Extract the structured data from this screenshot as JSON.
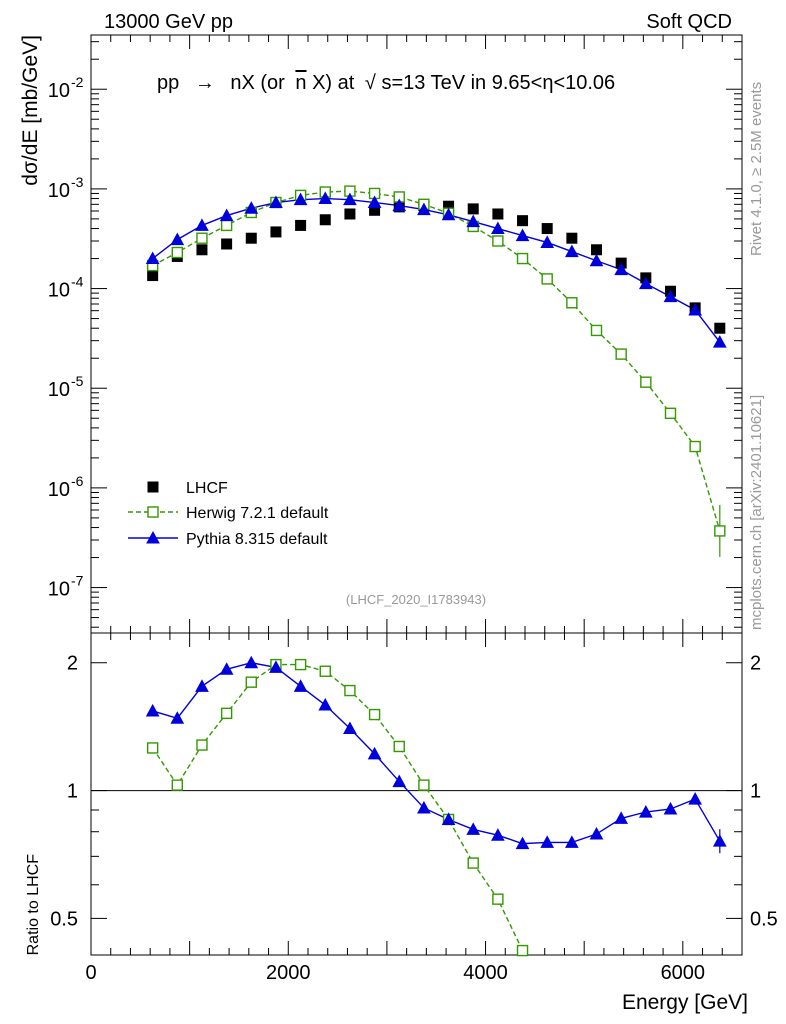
{
  "header": {
    "energy_label": "13000 GeV pp",
    "process_label": "Soft QCD"
  },
  "side": {
    "rivet_label": "Rivet 4.1.0, ≥ 2.5M events",
    "source_label": "mcplots.cern.ch [arXiv:2401.10621]"
  },
  "colors": {
    "lhcf": "#000000",
    "herwig": "#339900",
    "pythia": "#0000dd",
    "analysis_label": "#999999"
  },
  "chart_data": [
    {
      "type": "scatter",
      "panel": "main",
      "title": "pp → nX (or n̄X) at √s=13 TeV in 9.65<η<10.06",
      "title_parts": {
        "lead": "pp",
        "arrow": "→",
        "mid": "nX (or",
        "nbar": "n",
        "after_nbar": "X) at",
        "sqrt": "√",
        "tail": "s=13 TeV in 9.65<η<10.06"
      },
      "analysis_id": "(LHCF_2020_I1783943)",
      "xlabel": "Energy [GeV]",
      "ylabel": "dσ/dE [mb/GeV]",
      "xlim": [
        0,
        6600
      ],
      "ylim": [
        3.5e-08,
        0.035
      ],
      "yscale": "log",
      "ytick_labels": [
        {
          "value": 1e-07,
          "mantissa": "10",
          "exponent": "-7"
        },
        {
          "value": 1e-06,
          "mantissa": "10",
          "exponent": "-6"
        },
        {
          "value": 1e-05,
          "mantissa": "10",
          "exponent": "-5"
        },
        {
          "value": 0.0001,
          "mantissa": "10",
          "exponent": "-4"
        },
        {
          "value": 0.001,
          "mantissa": "10",
          "exponent": "-3"
        },
        {
          "value": 0.01,
          "mantissa": "10",
          "exponent": "-2"
        }
      ],
      "legend_position": "bottom-left",
      "series": [
        {
          "name": "LHCF",
          "style": "markers",
          "x": [
            625,
            875,
            1125,
            1375,
            1625,
            1875,
            2125,
            2375,
            2625,
            2875,
            3125,
            3375,
            3625,
            3875,
            4125,
            4375,
            4625,
            4875,
            5125,
            5375,
            5625,
            5875,
            6125,
            6375
          ],
          "y": [
            0.000135,
            0.00021,
            0.000245,
            0.00028,
            0.00032,
            0.00037,
            0.00043,
            0.00049,
            0.00056,
            0.00061,
            0.00066,
            0.00068,
            0.00067,
            0.00063,
            0.00056,
            0.00048,
            0.0004,
            0.00032,
            0.000245,
            0.00018,
            0.000128,
            9.4e-05,
            6.4e-05,
            4e-05
          ]
        },
        {
          "name": "Herwig 7.2.1 default",
          "style": "dashed line, open squares",
          "x": [
            625,
            875,
            1125,
            1375,
            1625,
            1875,
            2125,
            2375,
            2625,
            2875,
            3125,
            3375,
            3625,
            3875,
            4125,
            4375,
            4625,
            4875,
            5125,
            5375,
            5625,
            5875,
            6125,
            6375
          ],
          "y": [
            0.00017,
            0.00023,
            0.00032,
            0.00043,
            0.00058,
            0.00073,
            0.00086,
            0.00093,
            0.00095,
            0.0009,
            0.00083,
            0.0007,
            0.00057,
            0.00042,
            0.0003,
            0.0002,
            0.000125,
            7.2e-05,
            3.8e-05,
            2.2e-05,
            1.15e-05,
            5.6e-06,
            2.6e-06,
            3.7e-07
          ]
        },
        {
          "name": "Pythia 8.315 default",
          "style": "solid line, filled triangles",
          "x": [
            625,
            875,
            1125,
            1375,
            1625,
            1875,
            2125,
            2375,
            2625,
            2875,
            3125,
            3375,
            3625,
            3875,
            4125,
            4375,
            4625,
            4875,
            5125,
            5375,
            5625,
            5875,
            6125,
            6375
          ],
          "y": [
            0.0002,
            0.00031,
            0.00043,
            0.00054,
            0.00064,
            0.00073,
            0.00078,
            0.0008,
            0.00078,
            0.00073,
            0.00068,
            0.00062,
            0.00055,
            0.00047,
            0.0004,
            0.00034,
            0.00029,
            0.000235,
            0.00019,
            0.000155,
            0.000112,
            8.3e-05,
            6.1e-05,
            2.9e-05
          ]
        }
      ]
    },
    {
      "type": "line",
      "panel": "ratio",
      "xlabel": "Energy [GeV]",
      "ylabel": "Ratio to LHCF",
      "xlim": [
        0,
        6600
      ],
      "ylim": [
        0.41,
        2.35
      ],
      "yscale": "log",
      "xtick_labels": [
        {
          "value": 0,
          "label": "0"
        },
        {
          "value": 2000,
          "label": "2000"
        },
        {
          "value": 4000,
          "label": "4000"
        },
        {
          "value": 6000,
          "label": "6000"
        }
      ],
      "ytick_labels": [
        {
          "value": 0.5,
          "label": "0.5"
        },
        {
          "value": 1,
          "label": "1"
        },
        {
          "value": 2,
          "label": "2"
        }
      ],
      "reference_line": 1,
      "series": [
        {
          "name": "Herwig 7.2.1 default",
          "x": [
            625,
            875,
            1125,
            1375,
            1625,
            1875,
            2125,
            2375,
            2625,
            2875,
            3125,
            3375,
            3625,
            3875,
            4125,
            4375
          ],
          "y": [
            1.26,
            1.03,
            1.28,
            1.52,
            1.8,
            1.98,
            1.98,
            1.91,
            1.72,
            1.51,
            1.27,
            1.03,
            0.855,
            0.675,
            0.555,
            0.42
          ]
        },
        {
          "name": "Pythia 8.315 default",
          "x": [
            625,
            875,
            1125,
            1375,
            1625,
            1875,
            2125,
            2375,
            2625,
            2875,
            3125,
            3375,
            3625,
            3875,
            4125,
            4375,
            4625,
            4875,
            5125,
            5375,
            5625,
            5875,
            6125,
            6375
          ],
          "y": [
            1.54,
            1.48,
            1.76,
            1.93,
            2.0,
            1.95,
            1.76,
            1.59,
            1.4,
            1.22,
            1.05,
            0.91,
            0.855,
            0.81,
            0.785,
            0.75,
            0.755,
            0.755,
            0.79,
            0.86,
            0.89,
            0.905,
            0.955,
            0.76
          ]
        }
      ]
    }
  ]
}
